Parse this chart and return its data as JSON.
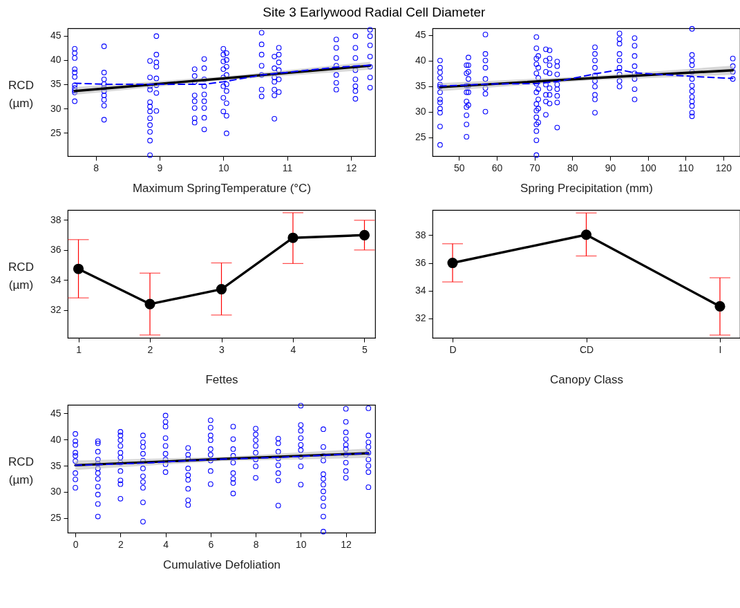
{
  "chart_data": [
    {
      "type": "scatter",
      "title": "Site 3 Earlywood Radial Cell Diameter",
      "xlabel": "Maximum SpringTemperature (°C)",
      "ylabel": "RCD (µm)",
      "xlim": [
        7.56,
        12.38
      ],
      "ylim": [
        20.2,
        46.5
      ],
      "xticks": [
        8,
        9,
        10,
        11,
        12
      ],
      "yticks": [
        25,
        30,
        35,
        40,
        45
      ],
      "grid": false,
      "marker": "circle",
      "series": [
        {
          "type": "scatter",
          "color": "#0000ff",
          "x": [
            7.67,
            7.67,
            7.67,
            7.67,
            7.67,
            7.67,
            7.67,
            7.67,
            7.67,
            7.67,
            7.67,
            8.13,
            8.13,
            8.13,
            8.13,
            8.13,
            8.13,
            8.13,
            8.13,
            8.13,
            8.13,
            8.85,
            8.85,
            8.85,
            8.85,
            8.85,
            8.85,
            8.85,
            8.85,
            8.85,
            8.85,
            8.85,
            8.85,
            8.95,
            8.95,
            8.95,
            8.95,
            8.95,
            8.95,
            8.95,
            8.95,
            9.55,
            9.55,
            9.55,
            9.55,
            9.55,
            9.55,
            9.55,
            9.55,
            9.7,
            9.7,
            9.7,
            9.7,
            9.7,
            9.7,
            9.7,
            9.7,
            9.7,
            10.0,
            10.0,
            10.0,
            10.0,
            10.0,
            10.0,
            10.0,
            10.0,
            10.05,
            10.05,
            10.05,
            10.05,
            10.05,
            10.05,
            10.05,
            10.05,
            10.05,
            10.6,
            10.6,
            10.6,
            10.6,
            10.6,
            10.6,
            10.6,
            10.8,
            10.8,
            10.8,
            10.8,
            10.8,
            10.8,
            10.8,
            10.87,
            10.87,
            10.87,
            10.87,
            10.87,
            10.87,
            11.77,
            11.77,
            11.77,
            11.77,
            11.77,
            11.77,
            11.77,
            12.07,
            12.07,
            12.07,
            12.07,
            12.07,
            12.07,
            12.07,
            12.07,
            12.3,
            12.3,
            12.3,
            12.3,
            12.3,
            12.3,
            12.3
          ],
          "values": [
            42.3,
            41.4,
            40.4,
            38.1,
            37.4,
            36.5,
            34.8,
            34.2,
            33.7,
            33.3,
            31.5,
            42.8,
            37.4,
            36.0,
            35.0,
            34.3,
            33.6,
            32.7,
            31.8,
            30.6,
            27.7,
            39.8,
            36.4,
            34.6,
            33.9,
            31.3,
            30.4,
            29.4,
            28.0,
            26.6,
            25.2,
            23.4,
            20.4,
            44.9,
            41.1,
            39.5,
            38.6,
            36.2,
            34.8,
            33.2,
            29.5,
            38.1,
            36.7,
            35.5,
            32.7,
            31.5,
            30.1,
            28.0,
            27.1,
            40.2,
            38.3,
            36.0,
            34.6,
            32.9,
            31.5,
            30.1,
            28.1,
            25.7,
            42.3,
            41.1,
            39.7,
            38.1,
            36.4,
            34.6,
            32.2,
            29.4,
            41.4,
            40.0,
            38.6,
            36.9,
            35.0,
            33.6,
            31.1,
            28.5,
            24.9,
            45.6,
            43.2,
            41.1,
            38.8,
            36.9,
            33.9,
            32.5,
            40.7,
            38.3,
            36.4,
            35.5,
            33.9,
            32.7,
            27.9,
            42.5,
            41.1,
            39.5,
            37.9,
            36.0,
            33.4,
            44.2,
            42.5,
            40.4,
            38.8,
            36.9,
            35.3,
            33.9,
            44.9,
            42.5,
            40.4,
            37.9,
            36.0,
            34.6,
            33.6,
            32.0,
            46.2,
            44.9,
            43.0,
            40.7,
            38.6,
            36.4,
            34.3
          ]
        },
        {
          "type": "line",
          "color": "#000000",
          "marker": "none",
          "x": [
            7.67,
            10,
            12.3
          ],
          "values": [
            33.6,
            36.2,
            38.8
          ],
          "lower": [
            32.8,
            35.8,
            38.0
          ],
          "upper": [
            34.4,
            36.6,
            39.6
          ]
        },
        {
          "type": "line",
          "color": "#0000ff",
          "marker": "none",
          "line_style": "dashed",
          "x": [
            7.67,
            8.13,
            8.9,
            9.7,
            10.0,
            10.6,
            11.77,
            12.3
          ],
          "values": [
            35.2,
            35.0,
            35.0,
            35.0,
            35.5,
            36.9,
            38.5,
            38.9
          ]
        }
      ]
    },
    {
      "type": "scatter",
      "xlabel": "Spring Precipitation (mm)",
      "xlim": [
        43.0,
        124.4
      ],
      "ylim": [
        21.3,
        46.3
      ],
      "xticks": [
        50,
        60,
        70,
        80,
        90,
        100,
        110,
        120
      ],
      "yticks": [
        25,
        30,
        35,
        40,
        45
      ],
      "grid": false,
      "marker": "circle",
      "series": [
        {
          "type": "scatter",
          "color": "#0000ff",
          "x": [
            45,
            45,
            45,
            45,
            45,
            45,
            45,
            45,
            45,
            45,
            45,
            45,
            45,
            52,
            52,
            52,
            52,
            52,
            52,
            52,
            52,
            52,
            52.5,
            52.5,
            52.5,
            52.5,
            52.5,
            52.5,
            52.5,
            57,
            57,
            57,
            57,
            57,
            57,
            57,
            57,
            70.5,
            70.5,
            70.5,
            70.5,
            70.5,
            70.5,
            70.5,
            70.5,
            70.5,
            70.5,
            70.5,
            70.5,
            70.5,
            70.5,
            71,
            71,
            71,
            71,
            71,
            71,
            71,
            73,
            73,
            73,
            73,
            73,
            73,
            73,
            74,
            74,
            74,
            74,
            74,
            74,
            74,
            76,
            76,
            76,
            76,
            76,
            76,
            76,
            76,
            86,
            86,
            86,
            86,
            86,
            86,
            86,
            86,
            86,
            86,
            92.5,
            92.5,
            92.5,
            92.5,
            92.5,
            92.5,
            92.5,
            92.5,
            92.5,
            96.5,
            96.5,
            96.5,
            96.5,
            96.5,
            96.5,
            96.5,
            96.5,
            111.7,
            111.7,
            111.7,
            111.7,
            111.7,
            111.7,
            111.7,
            111.7,
            111.7,
            111.7,
            111.7,
            111.7,
            111.7,
            122.5,
            122.5,
            122.5,
            122.5
          ],
          "values": [
            40.0,
            38.6,
            37.7,
            36.6,
            35.3,
            34.9,
            33.8,
            32.4,
            31.8,
            30.6,
            29.8,
            27.1,
            23.5,
            39.1,
            37.5,
            35.1,
            33.8,
            32.0,
            30.9,
            29.3,
            27.5,
            25.1,
            40.6,
            39.1,
            37.8,
            36.4,
            35.1,
            33.8,
            31.3,
            45.1,
            41.3,
            40.0,
            38.6,
            36.4,
            34.6,
            33.5,
            30.0,
            44.6,
            42.4,
            40.4,
            39.3,
            37.5,
            35.5,
            33.8,
            31.5,
            30.2,
            28.9,
            27.5,
            26.2,
            24.4,
            21.5,
            40.9,
            38.6,
            36.6,
            34.4,
            32.4,
            30.6,
            27.9,
            42.2,
            40.0,
            37.8,
            35.3,
            33.3,
            32.0,
            29.4,
            42.0,
            40.4,
            39.1,
            37.5,
            34.6,
            33.3,
            31.6,
            39.8,
            38.9,
            37.3,
            35.3,
            34.4,
            33.1,
            31.8,
            26.9,
            42.6,
            41.3,
            40.0,
            38.6,
            37.1,
            36.0,
            34.9,
            33.3,
            32.4,
            29.8,
            45.3,
            44.2,
            43.3,
            41.3,
            40.0,
            38.6,
            37.3,
            36.0,
            34.9,
            44.4,
            42.9,
            40.9,
            38.9,
            37.5,
            36.4,
            34.4,
            32.4,
            46.2,
            41.1,
            40.0,
            39.1,
            37.8,
            36.4,
            35.1,
            34.0,
            32.9,
            32.0,
            31.1,
            29.8,
            29.1,
            40.4,
            38.9,
            37.8,
            36.4
          ]
        },
        {
          "type": "line",
          "color": "#000000",
          "marker": "none",
          "x": [
            45,
            84,
            122.5
          ],
          "values": [
            34.8,
            36.5,
            38.1
          ],
          "lower": [
            34.0,
            36.1,
            37.2
          ],
          "upper": [
            35.6,
            36.9,
            39.0
          ]
        },
        {
          "type": "line",
          "color": "#0000ff",
          "marker": "none",
          "line_style": "dashed",
          "x": [
            45,
            52,
            57,
            70.5,
            76,
            86,
            92.5,
            96.5,
            111.7,
            122.5
          ],
          "values": [
            35.0,
            35.2,
            35.4,
            35.5,
            35.9,
            37.4,
            38.2,
            37.6,
            36.9,
            36.5
          ]
        }
      ]
    },
    {
      "type": "line",
      "xlabel": "Fettes",
      "ylabel": "RCD (µm)",
      "categories": [
        "1",
        "2",
        "3",
        "4",
        "5"
      ],
      "ylim": [
        30.14,
        38.65
      ],
      "yticks": [
        32,
        34,
        36,
        38
      ],
      "grid": false,
      "marker": "circle",
      "series": [
        {
          "color": "#000000",
          "values": [
            34.73,
            32.39,
            33.38,
            36.8,
            36.98
          ],
          "errors": [
            [
              32.8,
              36.68
            ],
            [
              30.33,
              34.45
            ],
            [
              31.66,
              35.13
            ],
            [
              35.09,
              38.47
            ],
            [
              35.99,
              37.97
            ]
          ]
        }
      ]
    },
    {
      "type": "line",
      "xlabel": "Canopy Class",
      "categories": [
        "D",
        "CD",
        "I"
      ],
      "ylim": [
        30.6,
        39.81
      ],
      "yticks": [
        32,
        34,
        36,
        38
      ],
      "grid": false,
      "marker": "circle",
      "series": [
        {
          "color": "#000000",
          "values": [
            36.0,
            38.03,
            32.87
          ],
          "errors": [
            [
              34.63,
              37.38
            ],
            [
              36.5,
              39.6
            ],
            [
              30.8,
              34.93
            ]
          ]
        }
      ]
    },
    {
      "type": "scatter",
      "xlabel": "Cumulative Defoliation",
      "ylabel": "RCD (µm)",
      "xlim": [
        -0.34,
        13.3
      ],
      "ylim": [
        22.2,
        46.65
      ],
      "xticks": [
        0,
        2,
        4,
        6,
        8,
        10,
        12
      ],
      "yticks": [
        25,
        30,
        35,
        40,
        45
      ],
      "grid": false,
      "marker": "circle",
      "series": [
        {
          "type": "scatter",
          "color": "#0000ff",
          "x": [
            0,
            0,
            0,
            0,
            0,
            0,
            0,
            0,
            0,
            1,
            1,
            1,
            1,
            1,
            1,
            1,
            1,
            1,
            1,
            1,
            1,
            2,
            2,
            2,
            2,
            2,
            2,
            2,
            2,
            2,
            2,
            2,
            3,
            3,
            3,
            3,
            3,
            3,
            3,
            3,
            3,
            3,
            3,
            4,
            4,
            4,
            4,
            4,
            4,
            4,
            4,
            4,
            5,
            5,
            5,
            5,
            5,
            5,
            5,
            5,
            5,
            6,
            6,
            6,
            6,
            6,
            6,
            6,
            6,
            6,
            7,
            7,
            7,
            7,
            7,
            7,
            7,
            7,
            7,
            8,
            8,
            8,
            8,
            8,
            8,
            8,
            8,
            9,
            9,
            9,
            9,
            9,
            9,
            9,
            9,
            10,
            10,
            10,
            10,
            10,
            10,
            10,
            10,
            10,
            11,
            11,
            11,
            11,
            11,
            11,
            11,
            11,
            11,
            11,
            11,
            11,
            12,
            12,
            12,
            12,
            12,
            12,
            12,
            12,
            12,
            12,
            13,
            13,
            13,
            13,
            13,
            13,
            13,
            13,
            13
          ],
          "values": [
            41.1,
            39.7,
            39.0,
            37.5,
            36.9,
            35.9,
            33.6,
            32.4,
            30.8,
            39.7,
            39.3,
            37.7,
            36.2,
            35.4,
            34.5,
            33.6,
            32.5,
            31.0,
            29.5,
            27.7,
            25.3,
            41.5,
            40.8,
            39.9,
            38.8,
            37.5,
            36.6,
            35.6,
            34.0,
            32.2,
            31.5,
            28.7,
            40.8,
            39.5,
            38.6,
            37.3,
            36.0,
            34.5,
            33.0,
            31.9,
            30.8,
            28.0,
            24.3,
            44.6,
            43.4,
            42.5,
            40.3,
            38.8,
            37.3,
            36.2,
            35.3,
            33.8,
            38.4,
            37.1,
            36.3,
            34.5,
            33.2,
            32.3,
            30.6,
            28.4,
            27.5,
            43.7,
            42.3,
            40.8,
            39.9,
            38.2,
            37.1,
            36.0,
            34.0,
            31.5,
            42.5,
            40.1,
            38.2,
            36.9,
            35.6,
            33.6,
            32.5,
            31.7,
            29.7,
            42.1,
            41.0,
            39.9,
            38.8,
            37.5,
            36.2,
            34.9,
            32.7,
            40.2,
            39.3,
            37.7,
            36.4,
            35.1,
            33.6,
            32.2,
            27.4,
            46.5,
            42.8,
            41.7,
            40.3,
            39.0,
            38.0,
            36.7,
            34.9,
            31.4,
            42.0,
            38.6,
            36.9,
            36.0,
            33.4,
            32.5,
            31.4,
            30.1,
            28.8,
            27.3,
            25.3,
            22.4,
            45.9,
            43.4,
            41.4,
            40.1,
            39.0,
            38.2,
            37.1,
            35.6,
            34.0,
            32.7,
            46.0,
            40.8,
            39.5,
            38.6,
            37.5,
            36.2,
            35.0,
            33.8,
            30.9
          ]
        },
        {
          "type": "line",
          "color": "#000000",
          "marker": "none",
          "x": [
            0,
            6.5,
            13
          ],
          "values": [
            35.1,
            36.3,
            37.4
          ],
          "lower": [
            34.2,
            35.9,
            36.5
          ],
          "upper": [
            36.0,
            36.7,
            38.3
          ]
        },
        {
          "type": "line",
          "color": "#0000ff",
          "marker": "none",
          "line_style": "dashed",
          "x": [
            0,
            3,
            6,
            9,
            13
          ],
          "values": [
            35.1,
            35.5,
            36.2,
            36.6,
            37.4
          ]
        }
      ]
    }
  ]
}
